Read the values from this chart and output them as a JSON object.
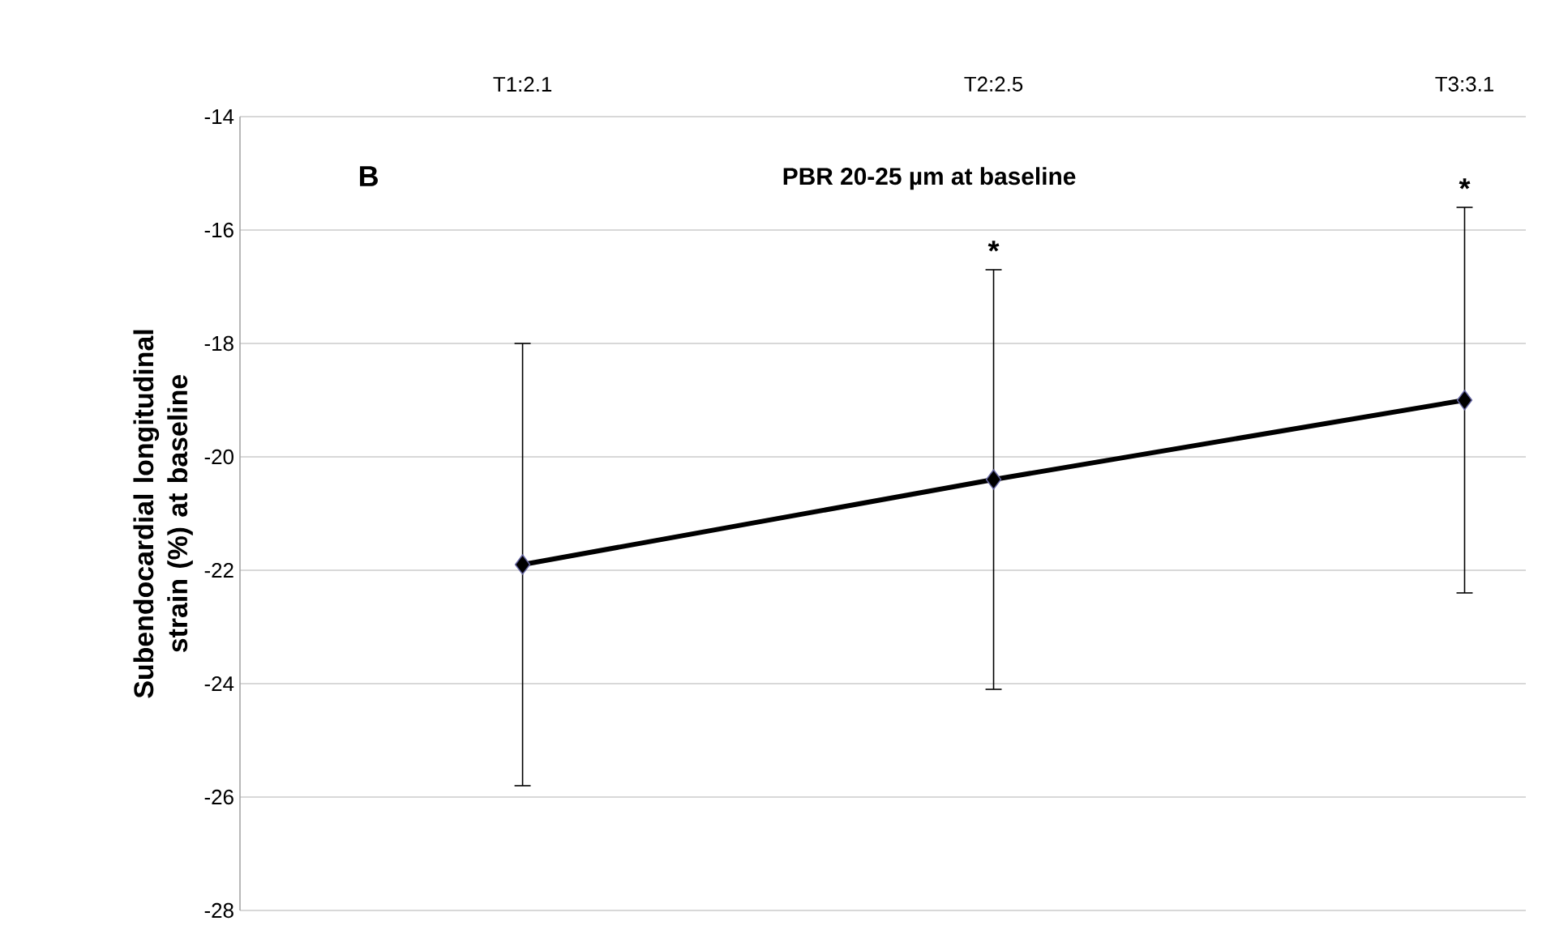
{
  "chart_data": {
    "type": "line",
    "title": "PBR 20-25 µm at baseline",
    "ylabel": "Subendocardial longitudinal strain (%) at baseline",
    "categories": [
      "T1:2.1",
      "T2:2.5",
      "T3:3.1"
    ],
    "series": [
      {
        "color": "#000000",
        "values": [
          -21.9,
          -20.4,
          -19.0
        ],
        "errors": [
          [
            -25.8,
            -18.0
          ],
          [
            -24.1,
            -16.7
          ],
          [
            -22.4,
            -15.6
          ]
        ]
      }
    ],
    "ylim": [
      -28,
      -14
    ],
    "yticks": [
      -28,
      -26,
      -24,
      -22,
      -20,
      -18,
      -16,
      -14
    ],
    "annotations": [
      "B",
      "*",
      "*"
    ],
    "grid": "y",
    "marker": "diamond",
    "line_style": "solid"
  }
}
